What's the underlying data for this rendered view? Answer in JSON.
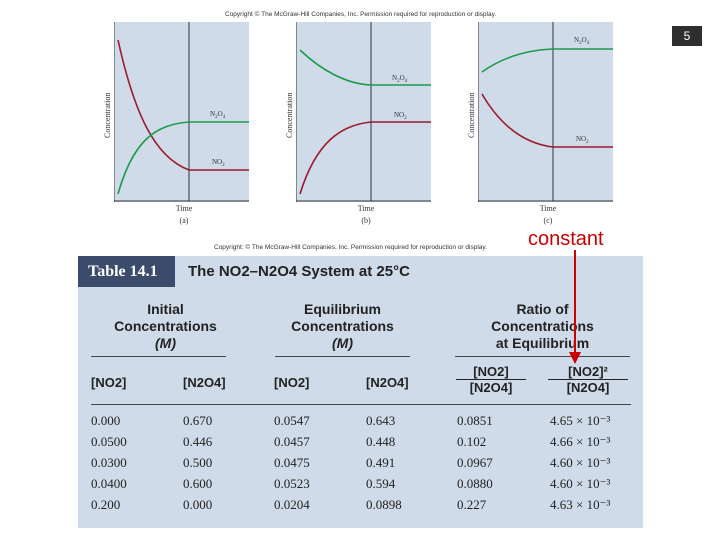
{
  "slide_number": "5",
  "top_copyright": "Copyright © The McGraw-Hill Companies, Inc. Permission required for reproduction or display.",
  "bottom_copyright": "Copyright: © The McGraw-Hill Companies, Inc. Permission required for reproduction or display.",
  "charts": [
    {
      "ylabel": "Concentration",
      "xlabel": "Time",
      "sublabel": "(a)",
      "top_species": "N2O4",
      "bottom_species": "NO2"
    },
    {
      "ylabel": "Concentration",
      "xlabel": "Time",
      "sublabel": "(b)",
      "top_species": "N2O4",
      "bottom_species": "NO2"
    },
    {
      "ylabel": "Concentration",
      "xlabel": "Time",
      "sublabel": "(c)",
      "top_species": "N2O4",
      "bottom_species": "NO2"
    }
  ],
  "annotation": "constant",
  "table": {
    "number": "Table 14.1",
    "title": "The NO2–N2O4 System at 25°C",
    "groups": {
      "initial": [
        "Initial",
        "Concentrations",
        "(M)"
      ],
      "equilibrium": [
        "Equilibrium",
        "Concentrations",
        "(M)"
      ],
      "ratio": [
        "Ratio of",
        "Concentrations",
        "at Equilibrium"
      ]
    },
    "columns": {
      "no2": "[NO2]",
      "n2o4": "[N2O4]",
      "ratio1_num": "[NO2]",
      "ratio1_den": "[N2O4]",
      "ratio2_num": "[NO2]²",
      "ratio2_den": "[N2O4]"
    },
    "rows": [
      [
        "0.000",
        "0.670",
        "0.0547",
        "0.643",
        "0.0851",
        "4.65 × 10⁻³"
      ],
      [
        "0.0500",
        "0.446",
        "0.0457",
        "0.448",
        "0.102",
        "4.66 × 10⁻³"
      ],
      [
        "0.0300",
        "0.500",
        "0.0475",
        "0.491",
        "0.0967",
        "4.60 × 10⁻³"
      ],
      [
        "0.0400",
        "0.600",
        "0.0523",
        "0.594",
        "0.0880",
        "4.60 × 10⁻³"
      ],
      [
        "0.200",
        "0.000",
        "0.0204",
        "0.0898",
        "0.227",
        "4.63 × 10⁻³"
      ]
    ]
  },
  "colors": {
    "no2_curve": "#9b1b2e",
    "n2o4_curve": "#1a9a4a",
    "annotation": "#cc0000",
    "table_header_tab": "#3a4b6b",
    "panel_bg": "#cfdbe8"
  }
}
